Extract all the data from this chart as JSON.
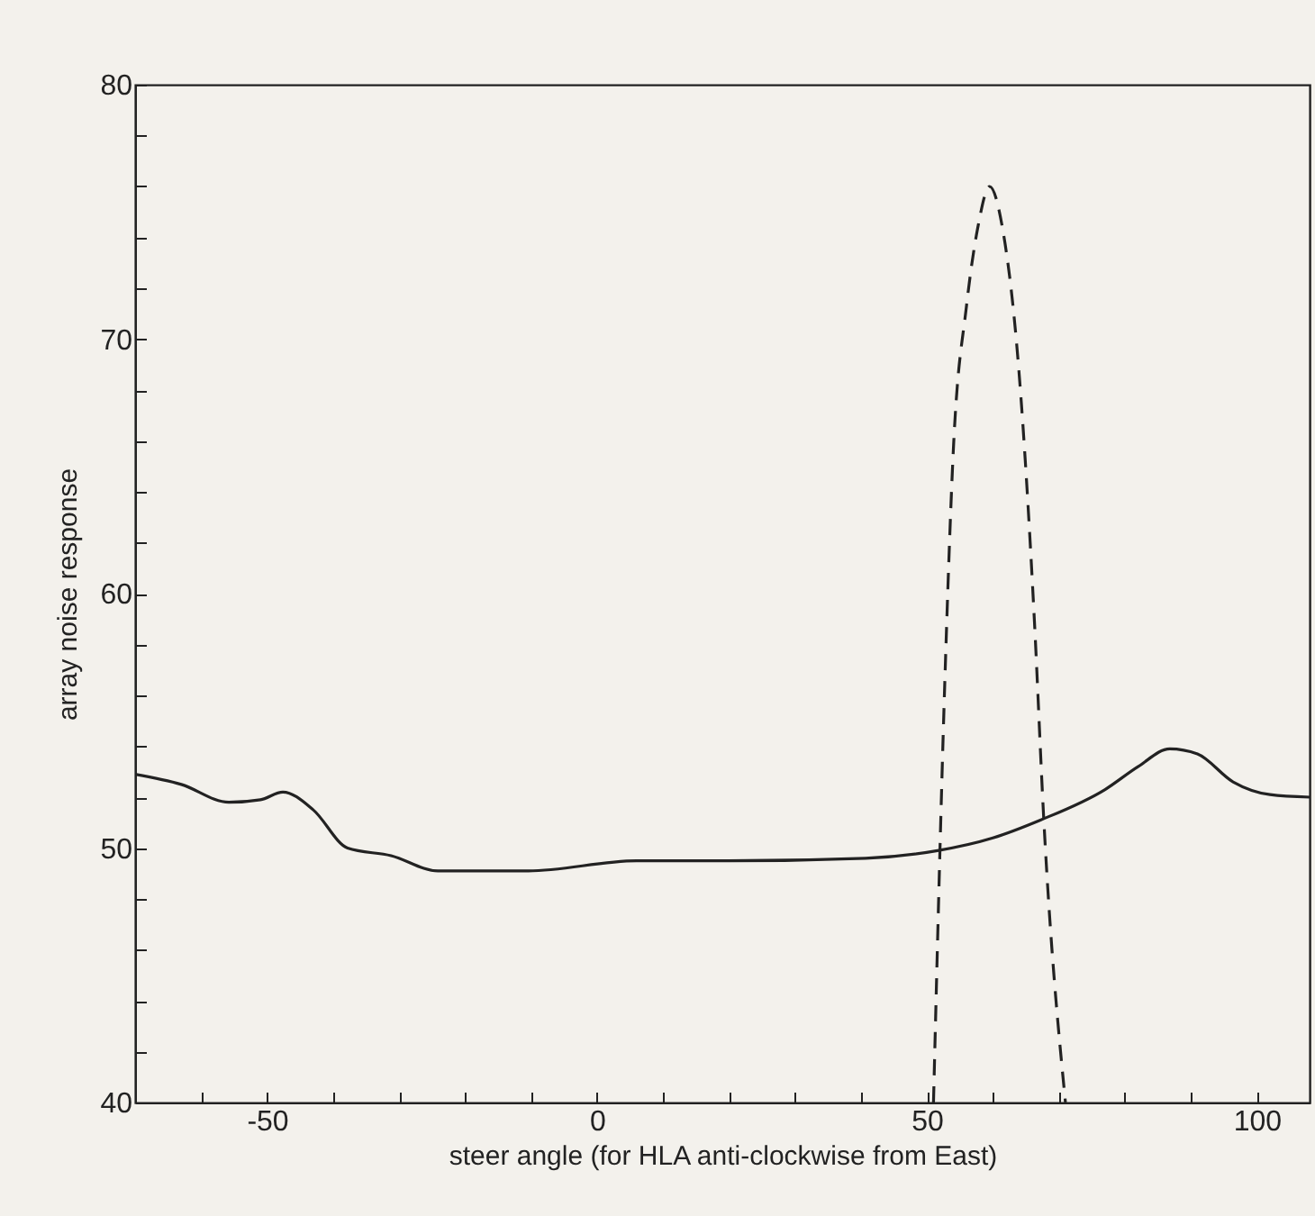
{
  "chart_data": {
    "type": "line",
    "xlabel": "steer angle (for HLA anti-clockwise from East)",
    "ylabel": "array noise response",
    "xlim": [
      -70,
      108
    ],
    "ylim": [
      40,
      80
    ],
    "xticks": [
      {
        "value": -60,
        "label": null
      },
      -50,
      {
        "value": -40,
        "label": null
      },
      {
        "value": -30,
        "label": null
      },
      {
        "value": -20,
        "label": null
      },
      {
        "value": -10,
        "label": null
      },
      0,
      {
        "value": 10,
        "label": null
      },
      {
        "value": 20,
        "label": null
      },
      {
        "value": 30,
        "label": null
      },
      {
        "value": 40,
        "label": null
      },
      50,
      {
        "value": 60,
        "label": null
      },
      {
        "value": 70,
        "label": null
      },
      {
        "value": 80,
        "label": null
      },
      {
        "value": 90,
        "label": null
      },
      100
    ],
    "yticks": [
      40,
      {
        "value": 42,
        "label": null
      },
      {
        "value": 44,
        "label": null
      },
      {
        "value": 46,
        "label": null
      },
      {
        "value": 48,
        "label": null
      },
      50,
      {
        "value": 52,
        "label": null
      },
      {
        "value": 54,
        "label": null
      },
      {
        "value": 56,
        "label": null
      },
      {
        "value": 58,
        "label": null
      },
      60,
      {
        "value": 62,
        "label": null
      },
      {
        "value": 64,
        "label": null
      },
      {
        "value": 66,
        "label": null
      },
      {
        "value": 68,
        "label": null
      },
      70,
      {
        "value": 72,
        "label": null
      },
      {
        "value": 74,
        "label": null
      },
      {
        "value": 76,
        "label": null
      },
      {
        "value": 78,
        "label": null
      },
      80
    ],
    "grid": false,
    "series": [
      {
        "color": "#222222",
        "line_style": "solid",
        "x": [
          -70,
          -63,
          -55.8,
          -51,
          -47.6,
          -43,
          -37.8,
          -31.2,
          -24.1,
          -10.4,
          6,
          20,
          40.7,
          51.6,
          60,
          67.2,
          77,
          82,
          86.8,
          91,
          96.4,
          102,
          108
        ],
        "values": [
          52.9,
          52.5,
          51.8,
          51.9,
          52.2,
          51.5,
          50.0,
          49.7,
          49.1,
          49.1,
          49.5,
          49.5,
          49.6,
          49.9,
          50.4,
          51.1,
          52.3,
          53.2,
          53.9,
          53.7,
          52.6,
          52.1,
          52.0
        ]
      },
      {
        "color": "#222222",
        "line_style": "dashed",
        "x": [
          51.0,
          52.7,
          54.0,
          56.0,
          57.8,
          59.5,
          61.5,
          63.9,
          66.3,
          67.7,
          71.0
        ],
        "values": [
          40,
          56.4,
          65.6,
          71.3,
          74.5,
          76,
          74.3,
          68.9,
          58.9,
          51.2,
          40
        ]
      }
    ]
  }
}
